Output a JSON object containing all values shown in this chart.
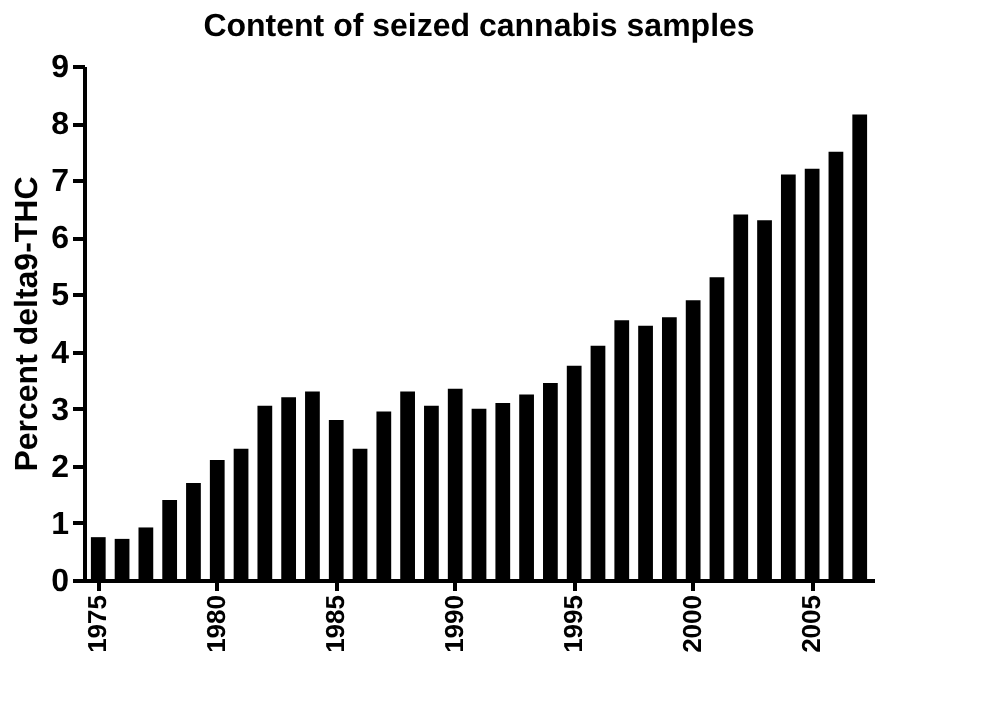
{
  "chart_data": {
    "type": "bar",
    "title": "Content of seized cannabis samples",
    "ylabel": "Percent delta9-THC",
    "categories": [
      "1975",
      null,
      null,
      null,
      null,
      "1980",
      null,
      null,
      null,
      null,
      "1985",
      null,
      null,
      null,
      null,
      "1990",
      null,
      null,
      null,
      null,
      "1995",
      null,
      null,
      null,
      null,
      "2000",
      null,
      null,
      null,
      null,
      "2005",
      null,
      null
    ],
    "values": [
      0.75,
      0.72,
      0.92,
      1.4,
      1.7,
      2.1,
      2.3,
      3.05,
      3.2,
      3.3,
      2.8,
      2.3,
      2.95,
      3.3,
      3.05,
      3.35,
      3.0,
      3.1,
      3.25,
      3.45,
      3.75,
      4.1,
      4.55,
      4.45,
      4.6,
      4.9,
      5.3,
      6.4,
      6.3,
      7.1,
      7.2,
      7.5,
      8.15
    ],
    "color": "#000000",
    "ylim": [
      0,
      9
    ],
    "yticks": [
      0,
      1,
      2,
      3,
      4,
      5,
      6,
      7,
      8,
      9
    ],
    "grid": false
  }
}
